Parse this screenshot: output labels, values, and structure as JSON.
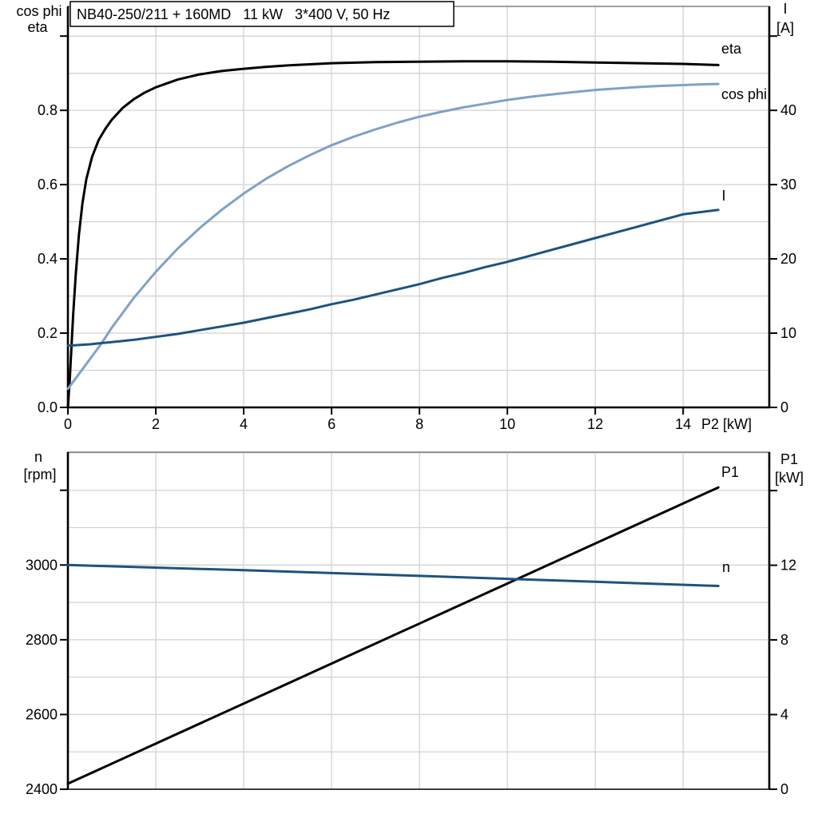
{
  "figure": {
    "title_box": "NB40-250/211 + 160MD   11 kW   3*400 V, 50 Hz"
  },
  "colors": {
    "black": "#000000",
    "light_blue": "#7ea2c8",
    "dark_blue": "#1c5380",
    "grid": "#d2d2d2",
    "frame_thin": "#666666"
  },
  "chart_data": [
    {
      "type": "line",
      "title": "NB40-250/211 + 160MD   11 kW   3*400 V, 50 Hz",
      "grid": true,
      "legend_position": "inline-labels",
      "x": {
        "title": "P2 [kW]",
        "range": [
          0,
          15.96
        ],
        "ticks": [
          {
            "v": 0,
            "label": "0"
          },
          {
            "v": 2,
            "label": "2"
          },
          {
            "v": 4,
            "label": "4"
          },
          {
            "v": 6,
            "label": "6"
          },
          {
            "v": 8,
            "label": "8"
          },
          {
            "v": 10,
            "label": "10"
          },
          {
            "v": 12,
            "label": "12"
          },
          {
            "v": 14,
            "label": "14"
          }
        ],
        "grid_step": 2
      },
      "y_left": {
        "title_lines": [
          "cos phi",
          "eta"
        ],
        "range": [
          0,
          1.08
        ],
        "ticks": [
          {
            "v": 0.0,
            "label": "0.0"
          },
          {
            "v": 0.2,
            "label": "0.2"
          },
          {
            "v": 0.4,
            "label": "0.4"
          },
          {
            "v": 0.6,
            "label": "0.6"
          },
          {
            "v": 0.8,
            "label": "0.8"
          }
        ],
        "extra_ticks": [
          1.0
        ],
        "grid_step": 0.1
      },
      "y_right": {
        "title_lines": [
          "I",
          "[A]"
        ],
        "range": [
          0,
          54
        ],
        "ticks": [
          {
            "v": 0,
            "label": "0"
          },
          {
            "v": 10,
            "label": "10"
          },
          {
            "v": 20,
            "label": "20"
          },
          {
            "v": 30,
            "label": "30"
          },
          {
            "v": 40,
            "label": "40"
          }
        ],
        "extra_ticks": [
          50
        ],
        "grid_step": 5
      },
      "series": [
        {
          "name": "eta",
          "axis": "left",
          "color": "black",
          "points": [
            [
              0,
              0
            ],
            [
              0.04,
              0.07
            ],
            [
              0.08,
              0.16
            ],
            [
              0.12,
              0.25
            ],
            [
              0.18,
              0.36
            ],
            [
              0.25,
              0.465
            ],
            [
              0.33,
              0.55
            ],
            [
              0.42,
              0.615
            ],
            [
              0.55,
              0.675
            ],
            [
              0.7,
              0.72
            ],
            [
              0.85,
              0.75
            ],
            [
              1.0,
              0.775
            ],
            [
              1.25,
              0.807
            ],
            [
              1.5,
              0.83
            ],
            [
              1.75,
              0.848
            ],
            [
              2.0,
              0.862
            ],
            [
              2.5,
              0.883
            ],
            [
              3.0,
              0.897
            ],
            [
              3.5,
              0.906
            ],
            [
              4.0,
              0.912
            ],
            [
              4.5,
              0.917
            ],
            [
              5.0,
              0.921
            ],
            [
              5.5,
              0.924
            ],
            [
              6.0,
              0.927
            ],
            [
              7.0,
              0.93
            ],
            [
              8.0,
              0.931
            ],
            [
              9.0,
              0.932
            ],
            [
              10.0,
              0.932
            ],
            [
              11.0,
              0.931
            ],
            [
              12.0,
              0.929
            ],
            [
              13.0,
              0.927
            ],
            [
              14.0,
              0.925
            ],
            [
              14.8,
              0.922
            ]
          ]
        },
        {
          "name": "cos phi",
          "axis": "left",
          "color": "light_blue",
          "points": [
            [
              0,
              0.05
            ],
            [
              0.25,
              0.09
            ],
            [
              0.5,
              0.13
            ],
            [
              0.75,
              0.17
            ],
            [
              1.0,
              0.215
            ],
            [
              1.5,
              0.295
            ],
            [
              2.0,
              0.365
            ],
            [
              2.5,
              0.428
            ],
            [
              3.0,
              0.483
            ],
            [
              3.5,
              0.532
            ],
            [
              4.0,
              0.576
            ],
            [
              4.5,
              0.615
            ],
            [
              5.0,
              0.649
            ],
            [
              5.5,
              0.679
            ],
            [
              6.0,
              0.706
            ],
            [
              6.5,
              0.729
            ],
            [
              7.0,
              0.749
            ],
            [
              7.5,
              0.767
            ],
            [
              8.0,
              0.783
            ],
            [
              8.5,
              0.796
            ],
            [
              9.0,
              0.808
            ],
            [
              9.5,
              0.818
            ],
            [
              10.0,
              0.828
            ],
            [
              10.5,
              0.836
            ],
            [
              11.0,
              0.843
            ],
            [
              11.5,
              0.849
            ],
            [
              12.0,
              0.855
            ],
            [
              12.5,
              0.859
            ],
            [
              13.0,
              0.863
            ],
            [
              13.5,
              0.866
            ],
            [
              14.0,
              0.868
            ],
            [
              14.4,
              0.87
            ],
            [
              14.8,
              0.871
            ]
          ]
        },
        {
          "name": "I",
          "axis": "right",
          "color": "dark_blue",
          "points": [
            [
              0,
              8.3
            ],
            [
              0.5,
              8.5
            ],
            [
              1.0,
              8.8
            ],
            [
              1.5,
              9.1
            ],
            [
              2.0,
              9.5
            ],
            [
              2.5,
              9.9
            ],
            [
              3.0,
              10.4
            ],
            [
              3.5,
              10.9
            ],
            [
              4.0,
              11.4
            ],
            [
              4.5,
              12.0
            ],
            [
              5.0,
              12.6
            ],
            [
              5.5,
              13.2
            ],
            [
              6.0,
              13.9
            ],
            [
              6.5,
              14.5
            ],
            [
              7.0,
              15.2
            ],
            [
              7.5,
              15.9
            ],
            [
              8.0,
              16.6
            ],
            [
              8.5,
              17.4
            ],
            [
              9.0,
              18.1
            ],
            [
              9.5,
              18.9
            ],
            [
              10.0,
              19.6
            ],
            [
              10.5,
              20.4
            ],
            [
              11.0,
              21.2
            ],
            [
              11.5,
              22.0
            ],
            [
              12.0,
              22.8
            ],
            [
              12.5,
              23.6
            ],
            [
              13.0,
              24.4
            ],
            [
              13.5,
              25.2
            ],
            [
              14.0,
              26.0
            ],
            [
              14.4,
              26.3
            ],
            [
              14.8,
              26.6
            ]
          ]
        }
      ]
    },
    {
      "type": "line",
      "title": "",
      "grid": true,
      "legend_position": "inline-labels",
      "x": {
        "title": "",
        "range": [
          0,
          15.96
        ],
        "ticks": [],
        "grid_step": 2
      },
      "y_left": {
        "title_lines": [
          "n",
          "[rpm]"
        ],
        "range": [
          2400,
          3302
        ],
        "ticks": [
          {
            "v": 2400,
            "label": "2400"
          },
          {
            "v": 2600,
            "label": "2600"
          },
          {
            "v": 2800,
            "label": "2800"
          },
          {
            "v": 3000,
            "label": "3000"
          }
        ],
        "extra_ticks": [
          3200
        ],
        "grid_step": 100
      },
      "y_right": {
        "title_lines": [
          "P1",
          "[kW]"
        ],
        "range": [
          0,
          18.06
        ],
        "ticks": [
          {
            "v": 0,
            "label": "0"
          },
          {
            "v": 4,
            "label": "4"
          },
          {
            "v": 8,
            "label": "8"
          },
          {
            "v": 12,
            "label": "12"
          }
        ],
        "extra_ticks": [
          16
        ],
        "grid_step": 2
      },
      "series": [
        {
          "name": "P1",
          "axis": "right",
          "color": "black",
          "points": [
            [
              0,
              0.3
            ],
            [
              5,
              5.66
            ],
            [
              10,
              11.02
            ],
            [
              14.8,
              16.17
            ]
          ]
        },
        {
          "name": "n",
          "axis": "left",
          "color": "dark_blue",
          "points": [
            [
              0,
              3000
            ],
            [
              4,
              2986
            ],
            [
              8,
              2971
            ],
            [
              12,
              2955
            ],
            [
              14.8,
              2944
            ]
          ]
        }
      ]
    }
  ]
}
